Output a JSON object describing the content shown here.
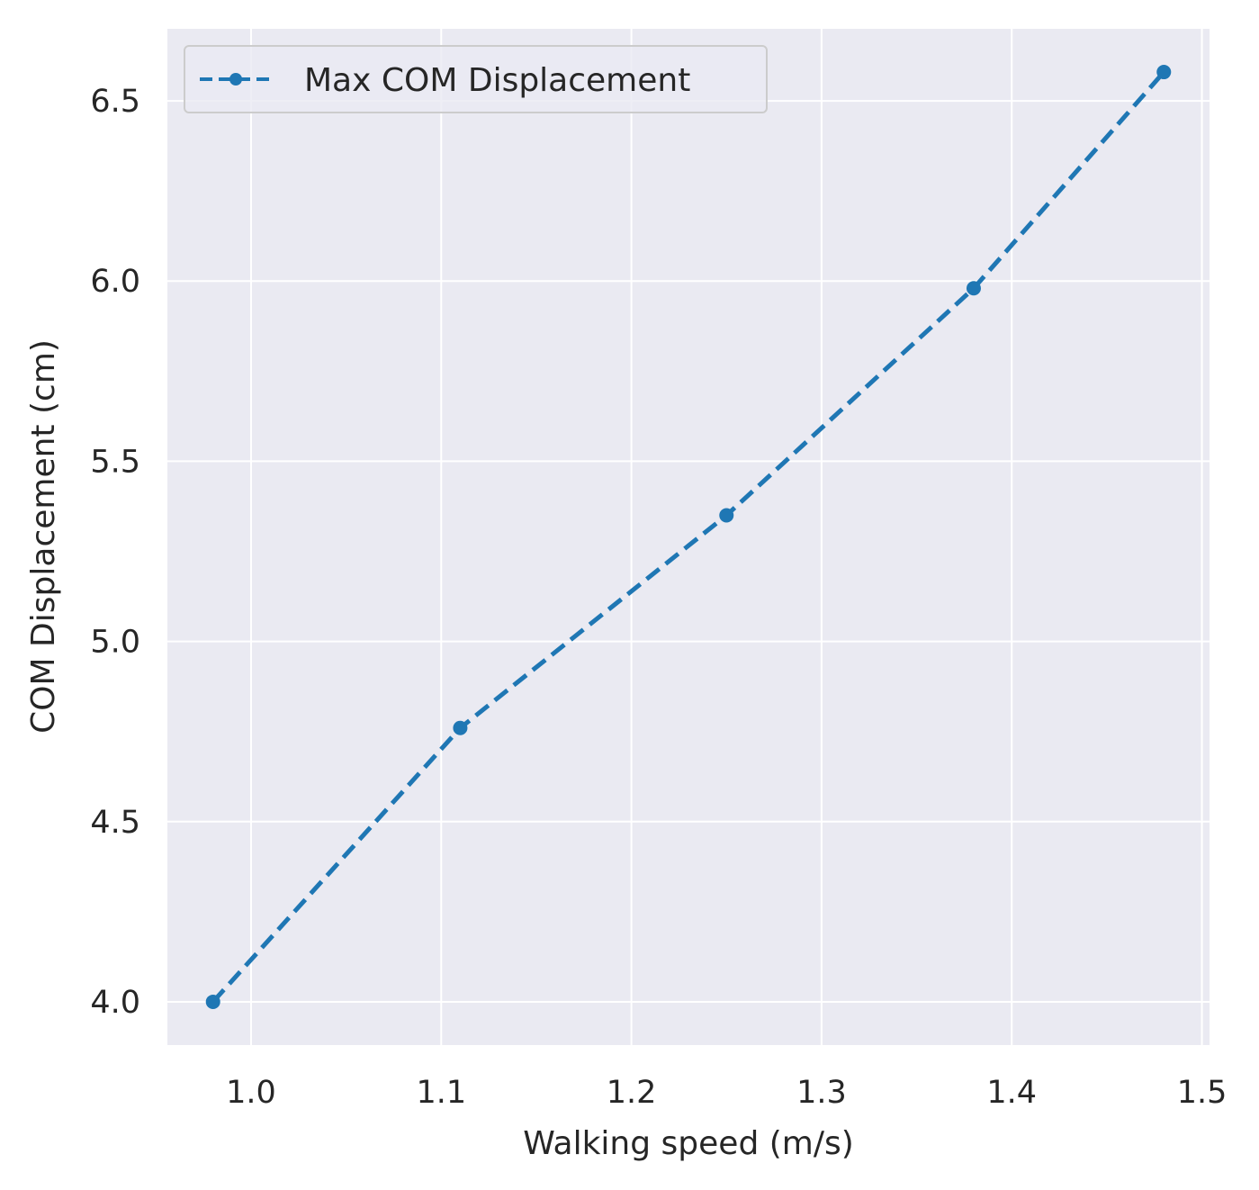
{
  "chart_data": {
    "type": "line",
    "title": "",
    "xlabel": "Walking speed (m/s)",
    "ylabel": "COM Displacement (cm)",
    "xlim": [
      0.956,
      1.504
    ],
    "ylim": [
      3.88,
      6.7
    ],
    "xticks": [
      "1.0",
      "1.1",
      "1.2",
      "1.3",
      "1.4",
      "1.5"
    ],
    "yticks": [
      "4.0",
      "4.5",
      "5.0",
      "5.5",
      "6.0",
      "6.5"
    ],
    "grid": true,
    "legend_position": "top-left",
    "series": [
      {
        "name": "Max COM Displacement",
        "color": "#1f77b4",
        "line_style": "dashed",
        "marker": "circle",
        "x": [
          0.98,
          1.11,
          1.25,
          1.38,
          1.48
        ],
        "y": [
          4.0,
          4.76,
          5.35,
          5.98,
          6.58
        ]
      }
    ]
  }
}
